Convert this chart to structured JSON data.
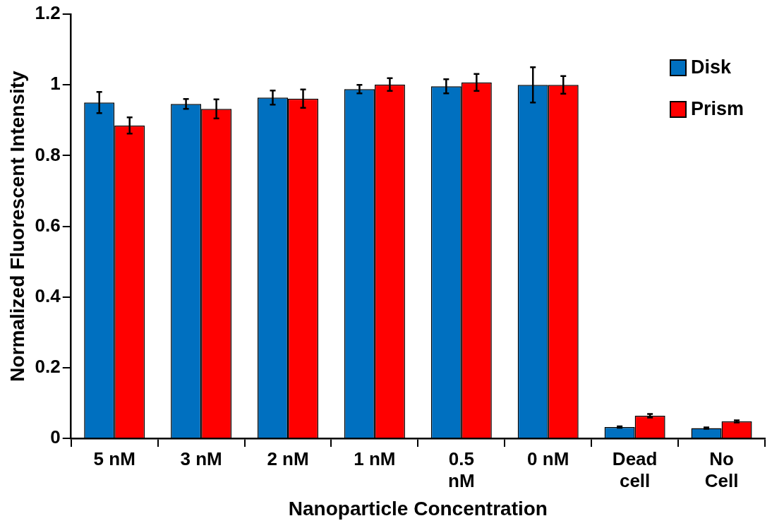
{
  "chart_data": {
    "type": "bar",
    "xlabel": "Nanoparticle Concentration",
    "ylabel": "Normalized Fluorescent Intensity",
    "categories": [
      "5 nM",
      "3 nM",
      "2 nM",
      "1 nM",
      "0.5 nM",
      "0 nM",
      "Dead cell",
      "No Cell"
    ],
    "series": [
      {
        "name": "Disk",
        "color": "#0070c0",
        "values": [
          0.95,
          0.946,
          0.964,
          0.988,
          0.996,
          1.0,
          0.032,
          0.029
        ],
        "errors": [
          0.03,
          0.014,
          0.02,
          0.012,
          0.02,
          0.05,
          0.002,
          0.002
        ]
      },
      {
        "name": "Prism",
        "color": "#ff0000",
        "values": [
          0.885,
          0.932,
          0.961,
          1.001,
          1.007,
          1.0,
          0.064,
          0.048
        ],
        "errors": [
          0.023,
          0.027,
          0.026,
          0.018,
          0.024,
          0.025,
          0.005,
          0.003
        ]
      }
    ],
    "ylim": [
      0,
      1.2
    ],
    "yticks": [
      0,
      0.2,
      0.4,
      0.6,
      0.8,
      1,
      1.2
    ],
    "grid": false,
    "legend": "top right"
  }
}
